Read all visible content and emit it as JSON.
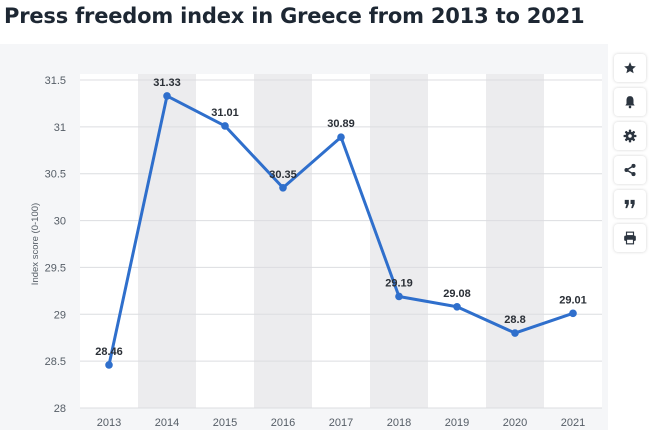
{
  "page": {
    "title": "Press freedom index in Greece from 2013 to 2021"
  },
  "toolbar": {
    "buttons": [
      {
        "name": "favorite",
        "icon": "star-icon"
      },
      {
        "name": "notify",
        "icon": "bell-icon"
      },
      {
        "name": "settings",
        "icon": "gear-icon"
      },
      {
        "name": "share",
        "icon": "share-icon"
      },
      {
        "name": "cite",
        "icon": "quote-icon"
      },
      {
        "name": "print",
        "icon": "print-icon"
      }
    ]
  },
  "chart_data": {
    "type": "line",
    "categories": [
      "2013",
      "2014",
      "2015",
      "2016",
      "2017",
      "2018",
      "2019",
      "2020",
      "2021"
    ],
    "values": [
      28.46,
      31.33,
      31.01,
      30.35,
      30.89,
      29.19,
      29.08,
      28.8,
      29.01
    ],
    "data_labels": [
      "28.46",
      "31.33",
      "31.01",
      "30.35",
      "30.89",
      "29.19",
      "29.08",
      "28.8",
      "29.01"
    ],
    "ylabel": "Index score (0-100)",
    "ylim": [
      28,
      31.5
    ],
    "yticks": [
      28,
      28.5,
      29,
      29.5,
      30,
      30.5,
      31,
      31.5
    ],
    "ytick_labels": [
      "28",
      "28.5",
      "29",
      "29.5",
      "30",
      "30.5",
      "31",
      "31.5"
    ],
    "grid": true,
    "alternating_column_bands": true,
    "line_color": "#2f6fcc",
    "band_color": "#ececee",
    "grid_color": "#dcdde0"
  }
}
